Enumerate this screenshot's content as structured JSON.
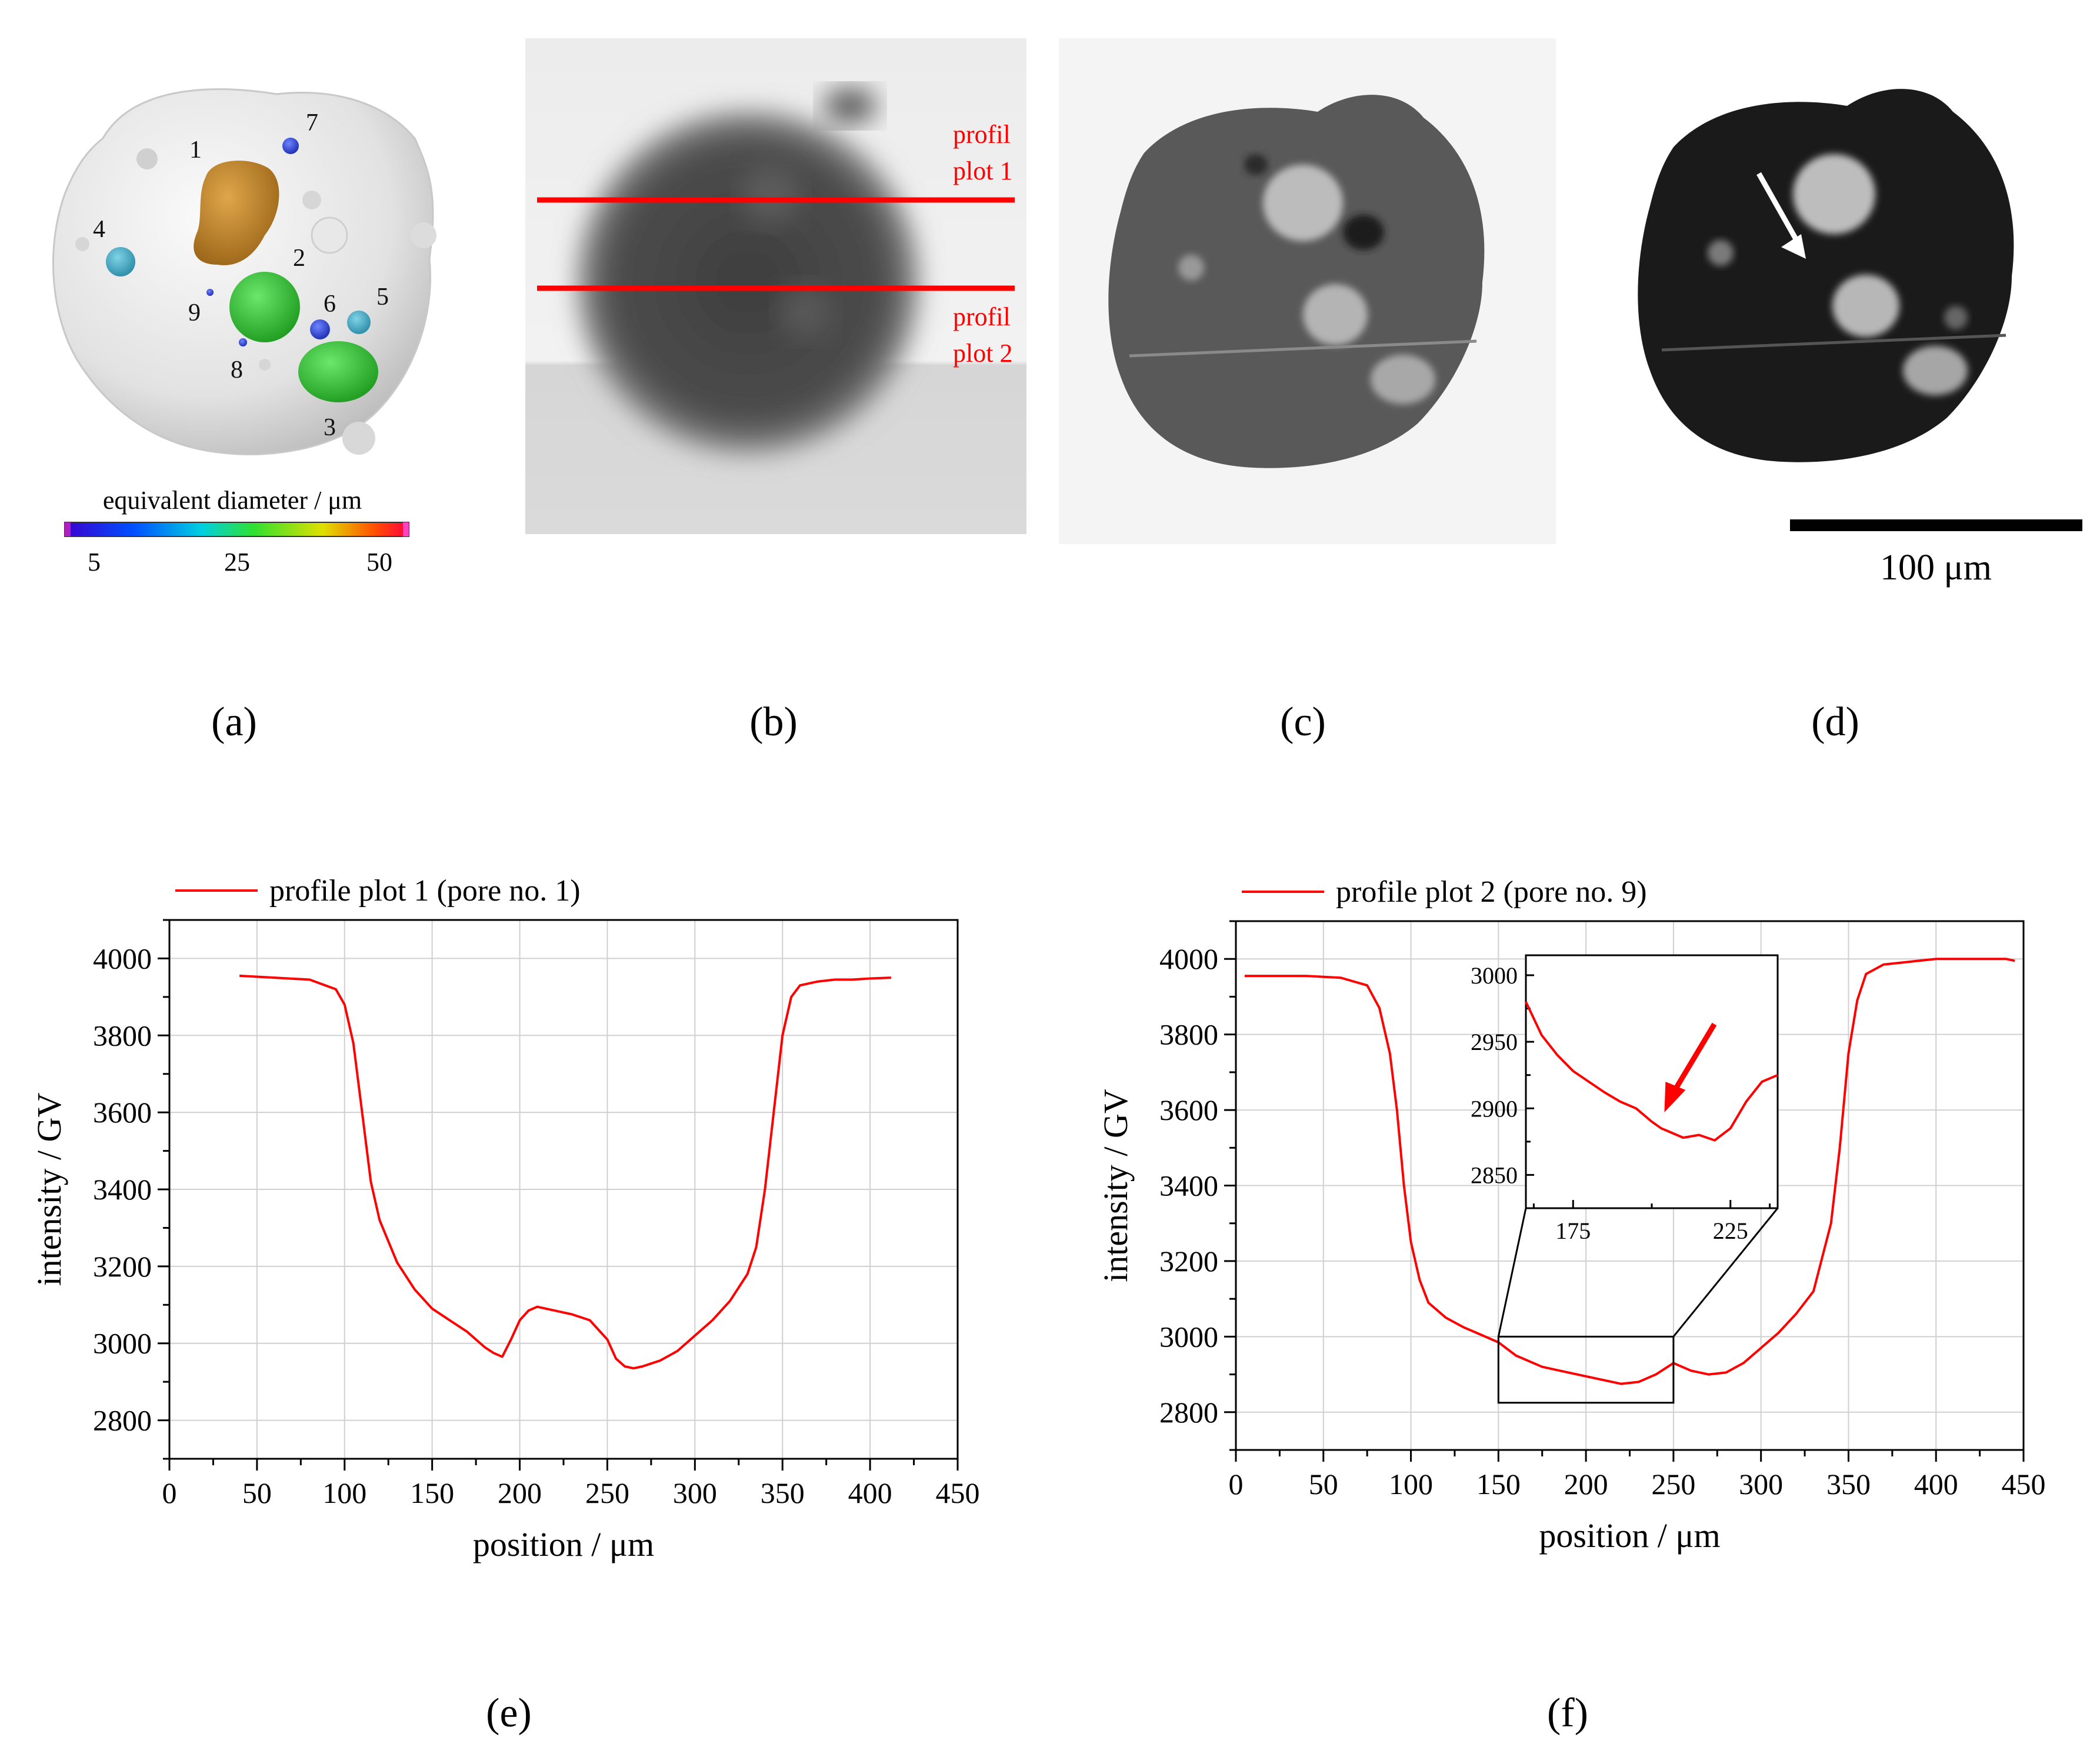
{
  "panel_labels": [
    "(a)",
    "(b)",
    "(c)",
    "(d)",
    "(e)",
    "(f)"
  ],
  "panel_a": {
    "pore_numbers": [
      "1",
      "2",
      "3",
      "4",
      "5",
      "6",
      "7",
      "8",
      "9"
    ],
    "colorbar_label": "equivalent diameter / μm",
    "colorbar_ticks": [
      "5",
      "25",
      "50"
    ]
  },
  "panel_b": {
    "profile_label_1": [
      "profil",
      "plot 1"
    ],
    "profile_label_2": [
      "profil",
      "plot 2"
    ],
    "line_color": "#ff0000"
  },
  "panel_d": {
    "scalebar_label": "100 μm"
  },
  "chart_data": [
    {
      "type": "line",
      "id": "e",
      "xlabel": "position / μm",
      "ylabel": "intensity / GV",
      "xlim": [
        0,
        450
      ],
      "ylim": [
        2700,
        4100
      ],
      "xticks": [
        0,
        50,
        100,
        150,
        200,
        250,
        300,
        350,
        400,
        450
      ],
      "yticks": [
        2800,
        3000,
        3200,
        3400,
        3600,
        3800,
        4000
      ],
      "grid": true,
      "legend_position": "top-left-outside",
      "series": [
        {
          "name": "profile plot 1 (pore no. 1)",
          "color": "#ff0000",
          "x": [
            40,
            60,
            80,
            95,
            100,
            105,
            110,
            115,
            120,
            130,
            140,
            150,
            160,
            170,
            180,
            185,
            190,
            195,
            200,
            205,
            210,
            215,
            220,
            230,
            240,
            250,
            255,
            260,
            265,
            270,
            280,
            290,
            300,
            310,
            320,
            330,
            335,
            340,
            345,
            350,
            355,
            360,
            370,
            380,
            390,
            400,
            412
          ],
          "y": [
            3955,
            3950,
            3945,
            3920,
            3880,
            3780,
            3600,
            3420,
            3320,
            3210,
            3140,
            3090,
            3060,
            3030,
            2990,
            2975,
            2965,
            3010,
            3060,
            3085,
            3095,
            3090,
            3085,
            3075,
            3060,
            3010,
            2960,
            2940,
            2935,
            2940,
            2955,
            2980,
            3020,
            3060,
            3110,
            3180,
            3250,
            3400,
            3600,
            3800,
            3900,
            3930,
            3940,
            3945,
            3945,
            3948,
            3950
          ]
        }
      ]
    },
    {
      "type": "line",
      "id": "f",
      "xlabel": "position / μm",
      "ylabel": "intensity / GV",
      "xlim": [
        0,
        450
      ],
      "ylim": [
        2700,
        4100
      ],
      "xticks": [
        0,
        50,
        100,
        150,
        200,
        250,
        300,
        350,
        400,
        450
      ],
      "yticks": [
        2800,
        3000,
        3200,
        3400,
        3600,
        3800,
        4000
      ],
      "grid": true,
      "legend_position": "top-left-outside",
      "series": [
        {
          "name": "profile plot 2 (pore no. 9)",
          "color": "#ff0000",
          "x": [
            5,
            20,
            40,
            60,
            75,
            82,
            88,
            92,
            96,
            100,
            105,
            110,
            120,
            130,
            140,
            150,
            160,
            175,
            190,
            200,
            210,
            220,
            230,
            240,
            250,
            260,
            270,
            280,
            290,
            300,
            310,
            320,
            330,
            340,
            345,
            350,
            355,
            360,
            370,
            380,
            390,
            400,
            420,
            440,
            445
          ],
          "y": [
            3955,
            3955,
            3955,
            3950,
            3930,
            3870,
            3750,
            3600,
            3400,
            3250,
            3150,
            3090,
            3050,
            3025,
            3005,
            2985,
            2950,
            2920,
            2905,
            2895,
            2885,
            2875,
            2880,
            2900,
            2930,
            2910,
            2900,
            2905,
            2930,
            2970,
            3010,
            3060,
            3120,
            3300,
            3500,
            3750,
            3890,
            3960,
            3985,
            3990,
            3995,
            4000,
            4000,
            4000,
            3995
          ]
        }
      ],
      "inset": {
        "xlim": [
          160,
          240
        ],
        "ylim": [
          2825,
          3015
        ],
        "xticks": [
          175,
          225
        ],
        "yticks": [
          2850,
          2900,
          2950,
          3000
        ],
        "zoom_box": {
          "x": [
            150,
            250
          ],
          "y": [
            2825,
            3000
          ]
        },
        "x": [
          160,
          165,
          170,
          175,
          180,
          185,
          190,
          195,
          200,
          203,
          206,
          210,
          215,
          220,
          225,
          230,
          235,
          240
        ],
        "y": [
          2980,
          2955,
          2940,
          2928,
          2920,
          2912,
          2905,
          2900,
          2890,
          2885,
          2882,
          2878,
          2880,
          2876,
          2885,
          2905,
          2920,
          2925
        ]
      }
    }
  ]
}
